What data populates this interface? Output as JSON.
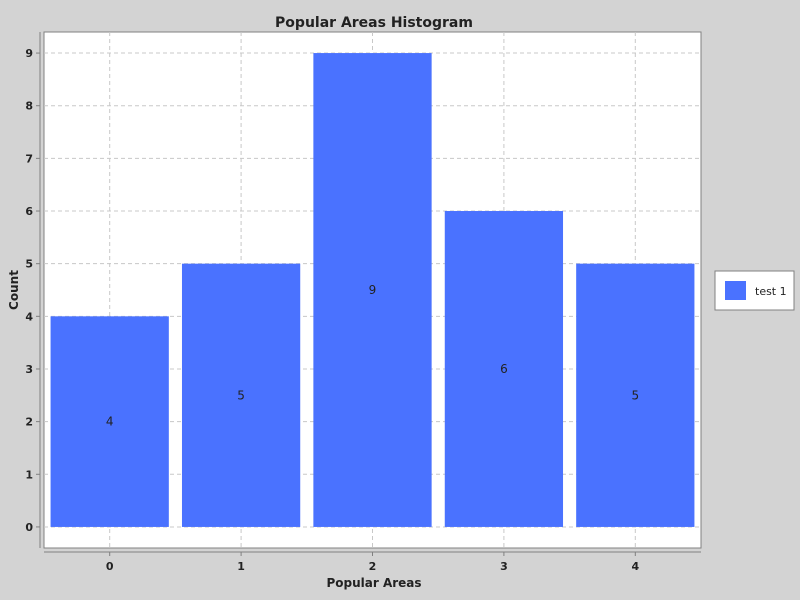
{
  "chart_data": {
    "type": "bar",
    "title": "Popular Areas Histogram",
    "xlabel": "Popular Areas",
    "ylabel": "Count",
    "categories": [
      "0",
      "1",
      "2",
      "3",
      "4"
    ],
    "series": [
      {
        "name": "test 1",
        "values": [
          4,
          5,
          9,
          6,
          5
        ],
        "color": "#4a72ff"
      }
    ],
    "data_labels": [
      "4",
      "5",
      "9",
      "6",
      "5"
    ],
    "yticks": [
      0,
      1,
      2,
      3,
      4,
      5,
      6,
      7,
      8,
      9
    ],
    "ylim": [
      -0.4,
      9.4
    ],
    "xlim": [
      -0.5,
      4.5
    ],
    "grid": true,
    "legend_position": "right"
  },
  "colors": {
    "background": "#d3d3d3",
    "plot_background": "#ffffff",
    "bar": "#4a72ff",
    "grid": "#c8c8c8",
    "axis": "#808080"
  }
}
